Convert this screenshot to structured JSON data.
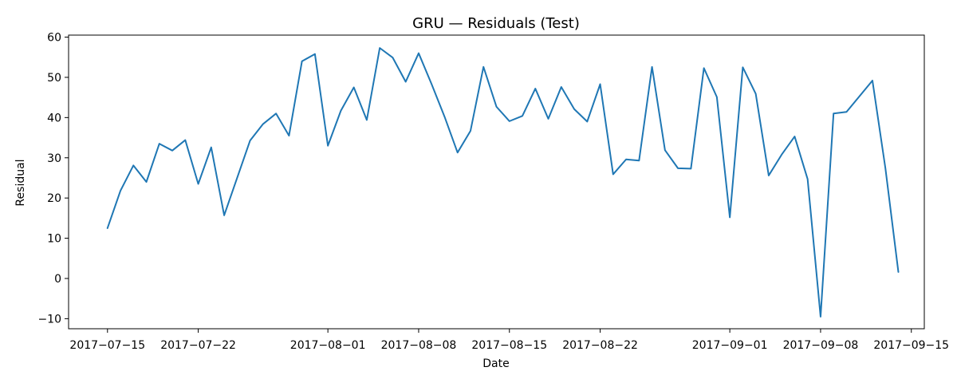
{
  "chart_data": {
    "type": "line",
    "title": "GRU — Residuals (Test)",
    "xlabel": "Date",
    "ylabel": "Residual",
    "x_ticks": [
      "2017-07-15",
      "2017-07-22",
      "2017-08-01",
      "2017-08-08",
      "2017-08-15",
      "2017-08-22",
      "2017-09-01",
      "2017-09-08",
      "2017-09-15"
    ],
    "y_ticks": [
      -10,
      0,
      10,
      20,
      30,
      40,
      50,
      60
    ],
    "xlim": [
      "2017-07-12",
      "2017-09-16"
    ],
    "ylim": [
      -12.5,
      60.5
    ],
    "grid": false,
    "color": "#1f77b4",
    "series": [
      {
        "x": [
          "2017-07-15",
          "2017-07-16",
          "2017-07-17",
          "2017-07-18",
          "2017-07-19",
          "2017-07-20",
          "2017-07-21",
          "2017-07-22",
          "2017-07-23",
          "2017-07-24",
          "2017-07-26",
          "2017-07-27",
          "2017-07-28",
          "2017-07-29",
          "2017-07-30",
          "2017-07-31",
          "2017-08-01",
          "2017-08-02",
          "2017-08-03",
          "2017-08-04",
          "2017-08-05",
          "2017-08-06",
          "2017-08-07",
          "2017-08-08",
          "2017-08-09",
          "2017-08-10",
          "2017-08-11",
          "2017-08-12",
          "2017-08-13",
          "2017-08-14",
          "2017-08-15",
          "2017-08-16",
          "2017-08-17",
          "2017-08-18",
          "2017-08-19",
          "2017-08-20",
          "2017-08-21",
          "2017-08-22",
          "2017-08-23",
          "2017-08-24",
          "2017-08-25",
          "2017-08-26",
          "2017-08-27",
          "2017-08-28",
          "2017-08-29",
          "2017-08-30",
          "2017-08-31",
          "2017-09-01",
          "2017-09-02",
          "2017-09-03",
          "2017-09-04",
          "2017-09-05",
          "2017-09-06",
          "2017-09-07",
          "2017-09-08",
          "2017-09-09",
          "2017-09-10",
          "2017-09-12",
          "2017-09-13",
          "2017-09-14"
        ],
        "values": [
          12.5,
          21.8,
          28.1,
          24.0,
          33.5,
          31.8,
          34.4,
          23.5,
          32.6,
          15.7,
          34.3,
          38.4,
          41.0,
          35.5,
          54.0,
          55.8,
          33.0,
          41.7,
          47.5,
          39.4,
          57.3,
          54.9,
          48.9,
          56.0,
          48.3,
          40.2,
          31.3,
          36.7,
          52.6,
          42.7,
          39.1,
          40.4,
          47.2,
          39.7,
          47.6,
          42.1,
          39.0,
          48.3,
          25.9,
          29.6,
          29.3,
          52.6,
          31.9,
          27.4,
          27.3,
          52.3,
          45.1,
          15.2,
          52.5,
          45.9,
          25.6,
          30.8,
          35.3,
          24.7,
          -9.5,
          41.0,
          41.4,
          49.2,
          27.4,
          1.6
        ]
      }
    ]
  }
}
